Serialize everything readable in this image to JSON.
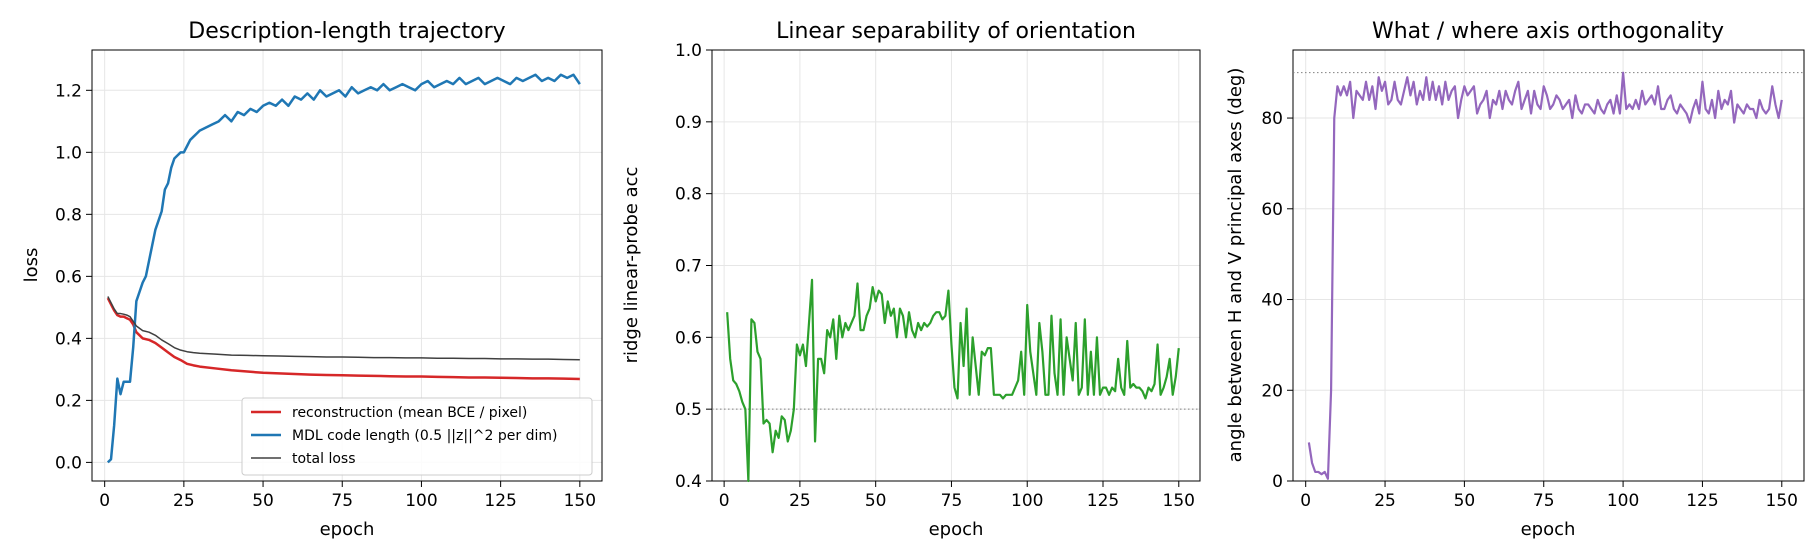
{
  "chart_data": [
    {
      "type": "line",
      "title": "Description-length trajectory",
      "xlabel": "epoch",
      "ylabel": "loss",
      "xlim": [
        -4,
        157
      ],
      "ylim": [
        -0.06,
        1.33
      ],
      "xticks": [
        0,
        25,
        50,
        75,
        100,
        125,
        150
      ],
      "yticks": [
        0.0,
        0.2,
        0.4,
        0.6,
        0.8,
        1.0,
        1.2
      ],
      "ytick_labels": [
        "0.0",
        "0.2",
        "0.4",
        "0.6",
        "0.8",
        "1.0",
        "1.2"
      ],
      "grid": true,
      "legend_position": "lower-right",
      "series": [
        {
          "name": "reconstruction (mean BCE / pixel)",
          "color": "#d62728",
          "x": [
            1,
            2,
            3,
            4,
            5,
            6,
            7,
            8,
            9,
            10,
            12,
            14,
            16,
            18,
            20,
            22,
            24,
            26,
            28,
            30,
            35,
            40,
            45,
            50,
            55,
            60,
            65,
            70,
            75,
            80,
            85,
            90,
            95,
            100,
            105,
            110,
            115,
            120,
            125,
            130,
            135,
            140,
            145,
            150
          ],
          "values": [
            0.53,
            0.51,
            0.49,
            0.475,
            0.47,
            0.47,
            0.465,
            0.46,
            0.445,
            0.42,
            0.4,
            0.395,
            0.385,
            0.37,
            0.355,
            0.34,
            0.33,
            0.318,
            0.313,
            0.309,
            0.303,
            0.297,
            0.293,
            0.289,
            0.287,
            0.285,
            0.283,
            0.282,
            0.281,
            0.28,
            0.279,
            0.278,
            0.277,
            0.277,
            0.276,
            0.275,
            0.274,
            0.274,
            0.273,
            0.272,
            0.271,
            0.271,
            0.27,
            0.269
          ]
        },
        {
          "name": "MDL code length (0.5 ||z||^2 per dim)",
          "color": "#1f77b4",
          "x": [
            1,
            2,
            3,
            4,
            5,
            6,
            7,
            8,
            9,
            10,
            11,
            12,
            13,
            14,
            15,
            16,
            17,
            18,
            19,
            20,
            21,
            22,
            23,
            24,
            25,
            26,
            27,
            28,
            29,
            30,
            32,
            34,
            36,
            38,
            40,
            42,
            44,
            46,
            48,
            50,
            52,
            54,
            56,
            58,
            60,
            62,
            64,
            66,
            68,
            70,
            72,
            74,
            76,
            78,
            80,
            82,
            84,
            86,
            88,
            90,
            92,
            94,
            96,
            98,
            100,
            102,
            104,
            106,
            108,
            110,
            112,
            114,
            116,
            118,
            120,
            122,
            124,
            126,
            128,
            130,
            132,
            134,
            136,
            138,
            140,
            142,
            144,
            146,
            148,
            150
          ],
          "values": [
            0.0,
            0.01,
            0.12,
            0.27,
            0.22,
            0.26,
            0.26,
            0.26,
            0.37,
            0.52,
            0.55,
            0.58,
            0.6,
            0.65,
            0.7,
            0.75,
            0.78,
            0.81,
            0.88,
            0.9,
            0.95,
            0.98,
            0.99,
            1.0,
            1.0,
            1.02,
            1.04,
            1.05,
            1.06,
            1.07,
            1.08,
            1.09,
            1.1,
            1.12,
            1.1,
            1.13,
            1.12,
            1.14,
            1.13,
            1.15,
            1.16,
            1.15,
            1.17,
            1.15,
            1.18,
            1.17,
            1.19,
            1.17,
            1.2,
            1.18,
            1.19,
            1.2,
            1.18,
            1.21,
            1.19,
            1.2,
            1.21,
            1.2,
            1.22,
            1.2,
            1.21,
            1.22,
            1.21,
            1.2,
            1.22,
            1.23,
            1.21,
            1.22,
            1.23,
            1.22,
            1.24,
            1.22,
            1.23,
            1.24,
            1.22,
            1.23,
            1.24,
            1.23,
            1.22,
            1.24,
            1.23,
            1.24,
            1.25,
            1.23,
            1.24,
            1.23,
            1.25,
            1.24,
            1.25,
            1.22
          ]
        },
        {
          "name": "total loss",
          "color": "#404040",
          "x": [
            1,
            2,
            3,
            4,
            5,
            6,
            7,
            8,
            9,
            10,
            12,
            14,
            16,
            18,
            20,
            22,
            24,
            26,
            28,
            30,
            35,
            40,
            45,
            50,
            55,
            60,
            65,
            70,
            75,
            80,
            85,
            90,
            95,
            100,
            105,
            110,
            115,
            120,
            125,
            130,
            135,
            140,
            145,
            150
          ],
          "values": [
            0.535,
            0.515,
            0.495,
            0.48,
            0.48,
            0.478,
            0.475,
            0.47,
            0.455,
            0.44,
            0.425,
            0.42,
            0.41,
            0.395,
            0.383,
            0.37,
            0.362,
            0.357,
            0.354,
            0.352,
            0.349,
            0.346,
            0.345,
            0.344,
            0.343,
            0.342,
            0.341,
            0.34,
            0.34,
            0.339,
            0.338,
            0.338,
            0.337,
            0.337,
            0.336,
            0.336,
            0.335,
            0.335,
            0.334,
            0.334,
            0.333,
            0.333,
            0.332,
            0.331
          ]
        }
      ]
    },
    {
      "type": "line",
      "title": "Linear separability of orientation",
      "xlabel": "epoch",
      "ylabel": "ridge linear-probe acc",
      "xlim": [
        -4,
        157
      ],
      "ylim": [
        0.4,
        1.0
      ],
      "xticks": [
        0,
        25,
        50,
        75,
        100,
        125,
        150
      ],
      "yticks": [
        0.4,
        0.5,
        0.6,
        0.7,
        0.8,
        0.9,
        1.0
      ],
      "ytick_labels": [
        "0.4",
        "0.5",
        "0.6",
        "0.7",
        "0.8",
        "0.9",
        "1.0"
      ],
      "grid": true,
      "reference_line": {
        "y": 0.5,
        "color": "#808080"
      },
      "series": [
        {
          "color": "#2ca02c",
          "x": [
            1,
            2,
            3,
            4,
            5,
            6,
            7,
            8,
            9,
            10,
            11,
            12,
            13,
            14,
            15,
            16,
            17,
            18,
            19,
            20,
            21,
            22,
            23,
            24,
            25,
            26,
            27,
            28,
            29,
            30,
            31,
            32,
            33,
            34,
            35,
            36,
            37,
            38,
            39,
            40,
            41,
            42,
            43,
            44,
            45,
            46,
            47,
            48,
            49,
            50,
            51,
            52,
            53,
            54,
            55,
            56,
            57,
            58,
            59,
            60,
            61,
            62,
            63,
            64,
            65,
            66,
            67,
            68,
            69,
            70,
            71,
            72,
            73,
            74,
            75,
            76,
            77,
            78,
            79,
            80,
            81,
            82,
            83,
            84,
            85,
            86,
            87,
            88,
            89,
            90,
            91,
            92,
            93,
            94,
            95,
            96,
            97,
            98,
            99,
            100,
            101,
            102,
            103,
            104,
            105,
            106,
            107,
            108,
            109,
            110,
            111,
            112,
            113,
            114,
            115,
            116,
            117,
            118,
            119,
            120,
            121,
            122,
            123,
            124,
            125,
            126,
            127,
            128,
            129,
            130,
            131,
            132,
            133,
            134,
            135,
            136,
            137,
            138,
            139,
            140,
            141,
            142,
            143,
            144,
            145,
            146,
            147,
            148,
            149,
            150
          ],
          "values": [
            0.635,
            0.57,
            0.54,
            0.535,
            0.525,
            0.51,
            0.5,
            0.4,
            0.625,
            0.62,
            0.58,
            0.57,
            0.48,
            0.485,
            0.48,
            0.44,
            0.47,
            0.46,
            0.49,
            0.485,
            0.455,
            0.47,
            0.5,
            0.59,
            0.575,
            0.59,
            0.56,
            0.62,
            0.68,
            0.455,
            0.57,
            0.57,
            0.55,
            0.61,
            0.6,
            0.625,
            0.57,
            0.63,
            0.6,
            0.62,
            0.61,
            0.62,
            0.63,
            0.675,
            0.61,
            0.61,
            0.63,
            0.64,
            0.67,
            0.65,
            0.665,
            0.66,
            0.62,
            0.65,
            0.63,
            0.64,
            0.6,
            0.64,
            0.63,
            0.6,
            0.635,
            0.61,
            0.6,
            0.62,
            0.61,
            0.62,
            0.615,
            0.62,
            0.63,
            0.635,
            0.635,
            0.625,
            0.63,
            0.665,
            0.59,
            0.53,
            0.515,
            0.62,
            0.56,
            0.64,
            0.52,
            0.6,
            0.56,
            0.52,
            0.58,
            0.575,
            0.585,
            0.585,
            0.52,
            0.52,
            0.52,
            0.515,
            0.52,
            0.52,
            0.52,
            0.53,
            0.54,
            0.58,
            0.52,
            0.645,
            0.58,
            0.55,
            0.52,
            0.62,
            0.58,
            0.52,
            0.52,
            0.63,
            0.55,
            0.52,
            0.625,
            0.52,
            0.6,
            0.57,
            0.54,
            0.62,
            0.52,
            0.53,
            0.625,
            0.52,
            0.58,
            0.52,
            0.6,
            0.52,
            0.53,
            0.53,
            0.52,
            0.53,
            0.525,
            0.57,
            0.53,
            0.52,
            0.595,
            0.53,
            0.535,
            0.53,
            0.53,
            0.525,
            0.515,
            0.53,
            0.525,
            0.535,
            0.59,
            0.52,
            0.53,
            0.545,
            0.57,
            0.52,
            0.545,
            0.585
          ]
        }
      ]
    },
    {
      "type": "line",
      "title": "What / where axis orthogonality",
      "xlabel": "epoch",
      "ylabel": "angle between H and V principal axes (deg)",
      "xlim": [
        -4,
        157
      ],
      "ylim": [
        0,
        95
      ],
      "xticks": [
        0,
        25,
        50,
        75,
        100,
        125,
        150
      ],
      "yticks": [
        0,
        20,
        40,
        60,
        80
      ],
      "ytick_labels": [
        "0",
        "20",
        "40",
        "60",
        "80"
      ],
      "grid": true,
      "reference_line": {
        "y": 90,
        "color": "#808080"
      },
      "series": [
        {
          "color": "#9467bd",
          "x": [
            1,
            2,
            3,
            4,
            5,
            6,
            7,
            8,
            9,
            10,
            11,
            12,
            13,
            14,
            15,
            16,
            17,
            18,
            19,
            20,
            21,
            22,
            23,
            24,
            25,
            26,
            27,
            28,
            29,
            30,
            31,
            32,
            33,
            34,
            35,
            36,
            37,
            38,
            39,
            40,
            41,
            42,
            43,
            44,
            45,
            46,
            47,
            48,
            49,
            50,
            51,
            52,
            53,
            54,
            55,
            56,
            57,
            58,
            59,
            60,
            61,
            62,
            63,
            64,
            65,
            66,
            67,
            68,
            69,
            70,
            71,
            72,
            73,
            74,
            75,
            76,
            77,
            78,
            79,
            80,
            81,
            82,
            83,
            84,
            85,
            86,
            87,
            88,
            89,
            90,
            91,
            92,
            93,
            94,
            95,
            96,
            97,
            98,
            99,
            100,
            101,
            102,
            103,
            104,
            105,
            106,
            107,
            108,
            109,
            110,
            111,
            112,
            113,
            114,
            115,
            116,
            117,
            118,
            119,
            120,
            121,
            122,
            123,
            124,
            125,
            126,
            127,
            128,
            129,
            130,
            131,
            132,
            133,
            134,
            135,
            136,
            137,
            138,
            139,
            140,
            141,
            142,
            143,
            144,
            145,
            146,
            147,
            148,
            149,
            150
          ],
          "values": [
            8.5,
            4,
            2,
            2,
            1.5,
            2,
            0.5,
            20,
            80,
            87,
            85,
            87,
            85,
            88,
            80,
            86,
            85,
            84,
            88,
            84,
            87,
            82,
            89,
            86,
            88,
            83,
            84,
            88,
            84,
            83,
            86,
            89,
            85,
            88,
            83,
            86,
            84,
            89,
            84,
            88,
            84,
            87,
            83,
            88,
            84,
            86,
            87,
            80,
            84,
            87,
            85,
            86,
            87,
            81,
            83,
            84,
            86,
            80,
            84,
            83,
            86,
            82,
            86,
            84,
            83,
            86,
            88,
            82,
            84,
            86,
            81,
            86,
            83,
            82,
            87,
            85,
            82,
            83,
            85,
            84,
            82,
            83,
            84,
            80,
            85,
            82,
            81,
            83,
            83,
            82,
            81,
            84,
            82,
            81,
            83,
            84,
            81,
            85,
            81,
            90,
            82,
            83,
            82,
            84,
            82,
            86,
            83,
            84,
            85,
            83,
            87,
            82,
            82,
            84,
            85,
            82,
            81,
            83,
            82,
            81,
            79,
            82,
            84,
            81,
            88,
            82,
            81,
            84,
            80,
            86,
            82,
            84,
            83,
            86,
            79,
            83,
            82,
            81,
            83,
            82,
            82,
            80,
            84,
            82,
            81,
            82,
            87,
            83,
            80,
            84
          ]
        }
      ]
    }
  ]
}
